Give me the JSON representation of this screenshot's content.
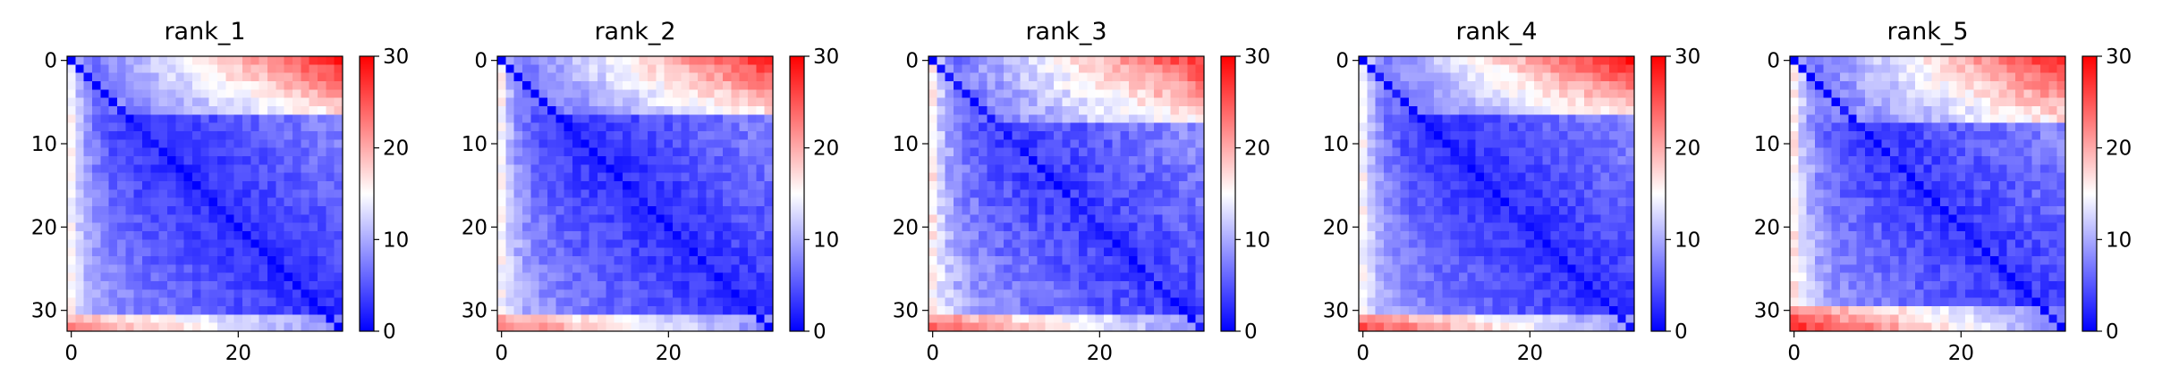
{
  "chart_data": {
    "type": "heatmap",
    "grid_size": 33,
    "colormap": "bwr",
    "colors": {
      "low": "#0000ff",
      "mid": "#ffffff",
      "high": "#ff0000",
      "axis": "#000000"
    },
    "vmin": 0,
    "vmax": 30,
    "x_ticks": [
      0,
      20
    ],
    "y_ticks": [
      0,
      10,
      20,
      30
    ],
    "colorbar_ticks": [
      0,
      10,
      20,
      30
    ],
    "panels": [
      {
        "title": "rank_1",
        "top_right": 28,
        "top_start_row": 7,
        "bottom_left": 22,
        "bottom_start_row": 31,
        "edge": 15,
        "interior": 2.5,
        "noise": 1.6,
        "seed": 11
      },
      {
        "title": "rank_2",
        "top_right": 28,
        "top_start_row": 7,
        "bottom_left": 23,
        "bottom_start_row": 31,
        "edge": 15,
        "interior": 2.5,
        "noise": 1.7,
        "seed": 23
      },
      {
        "title": "rank_3",
        "top_right": 27,
        "top_start_row": 8,
        "bottom_left": 25,
        "bottom_start_row": 31,
        "edge": 16,
        "interior": 3.2,
        "noise": 2.0,
        "seed": 37
      },
      {
        "title": "rank_4",
        "top_right": 29,
        "top_start_row": 7,
        "bottom_left": 25,
        "bottom_start_row": 31,
        "edge": 15,
        "interior": 2.5,
        "noise": 1.6,
        "seed": 41
      },
      {
        "title": "rank_5",
        "top_right": 28,
        "top_start_row": 8,
        "bottom_left": 27,
        "bottom_start_row": 30,
        "edge": 16,
        "interior": 3.0,
        "noise": 1.9,
        "seed": 53
      }
    ]
  }
}
